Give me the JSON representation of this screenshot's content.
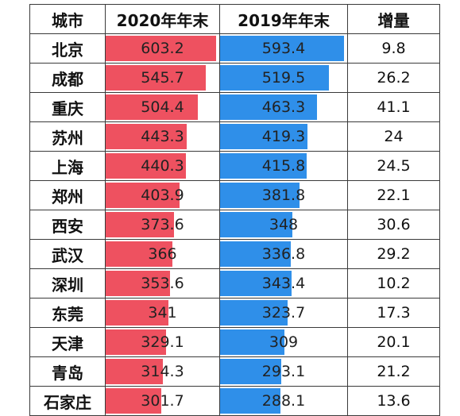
{
  "headers": {
    "city": "城市",
    "y2020": "2020年年末",
    "y2019": "2019年年末",
    "increase": "增量"
  },
  "colors": {
    "bar_2020": "#ee5160",
    "bar_2019": "#2f8fe9"
  },
  "rows": [
    {
      "city": "北京",
      "y2020": "603.2",
      "y2019": "593.4",
      "increase": "9.8"
    },
    {
      "city": "成都",
      "y2020": "545.7",
      "y2019": "519.5",
      "increase": "26.2"
    },
    {
      "city": "重庆",
      "y2020": "504.4",
      "y2019": "463.3",
      "increase": "41.1"
    },
    {
      "city": "苏州",
      "y2020": "443.3",
      "y2019": "419.3",
      "increase": "24"
    },
    {
      "city": "上海",
      "y2020": "440.3",
      "y2019": "415.8",
      "increase": "24.5"
    },
    {
      "city": "郑州",
      "y2020": "403.9",
      "y2019": "381.8",
      "increase": "22.1"
    },
    {
      "city": "西安",
      "y2020": "373.6",
      "y2019": "348",
      "increase": "30.6"
    },
    {
      "city": "武汉",
      "y2020": "366",
      "y2019": "336.8",
      "increase": "29.2"
    },
    {
      "city": "深圳",
      "y2020": "353.6",
      "y2019": "343.4",
      "increase": "10.2"
    },
    {
      "city": "东莞",
      "y2020": "341",
      "y2019": "323.7",
      "increase": "17.3"
    },
    {
      "city": "天津",
      "y2020": "329.1",
      "y2019": "309",
      "increase": "20.1"
    },
    {
      "city": "青岛",
      "y2020": "314.3",
      "y2019": "293.1",
      "increase": "21.2"
    },
    {
      "city": "石家庄",
      "y2020": "301.7",
      "y2019": "288.1",
      "increase": "13.6"
    }
  ]
}
